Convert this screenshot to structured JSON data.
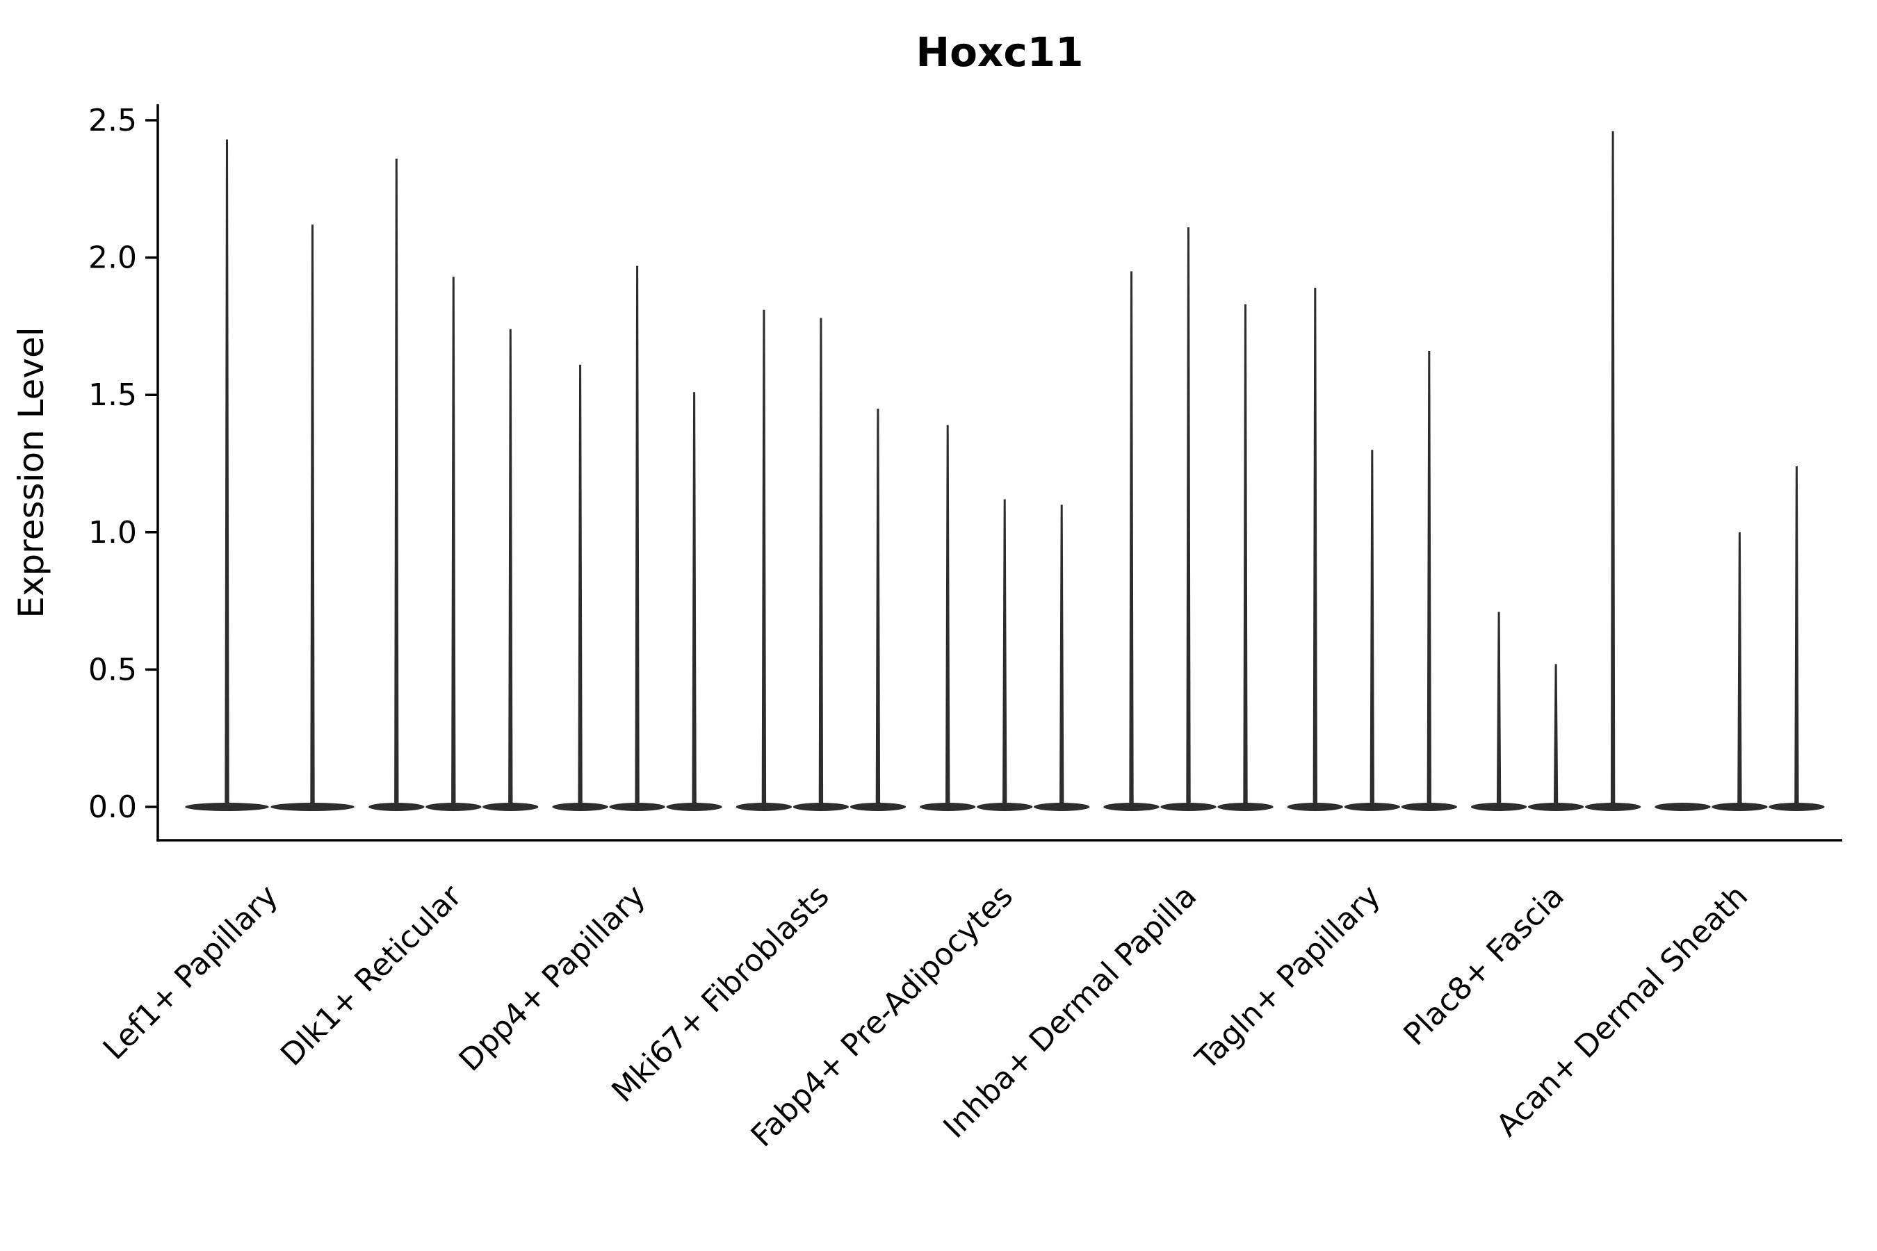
{
  "chart_data": {
    "type": "violin",
    "title": "Hoxc11",
    "ylabel": "Expression Level",
    "xlabel": "",
    "grid": false,
    "legend_position": "none",
    "ylim": [
      -0.12,
      2.56
    ],
    "ytick_labels": [
      "0.0",
      "0.5",
      "1.0",
      "1.5",
      "2.0",
      "2.5"
    ],
    "ytick_values": [
      0.0,
      0.5,
      1.0,
      1.5,
      2.0,
      2.5
    ],
    "categories": [
      "Lef1+ Papillary",
      "Dlk1+ Reticular",
      "Dpp4+ Papillary",
      "Mki67+ Fibroblasts",
      "Fabp4+ Pre-Adipocytes",
      "Inhba+ Dermal Papilla",
      "Tagln+ Papillary",
      "Plac8+ Fascia",
      "Acan+ Dermal Sheath"
    ],
    "description": "Needle violin plot: each violin's distribution bulk sits at 0 expression with a thin spike reaching the maximum expression value. Groups contain 2-3 violins; a value of 0 means a completely flat violin with no spike.",
    "groups": [
      {
        "category": "Lef1+ Papillary",
        "violin_max_values": [
          2.43,
          2.12
        ]
      },
      {
        "category": "Dlk1+ Reticular",
        "violin_max_values": [
          2.36,
          1.93,
          1.74
        ]
      },
      {
        "category": "Dpp4+ Papillary",
        "violin_max_values": [
          1.61,
          1.97,
          1.51
        ]
      },
      {
        "category": "Mki67+ Fibroblasts",
        "violin_max_values": [
          1.81,
          1.78,
          1.45
        ]
      },
      {
        "category": "Fabp4+ Pre-Adipocytes",
        "violin_max_values": [
          1.39,
          1.12,
          1.1
        ]
      },
      {
        "category": "Inhba+ Dermal Papilla",
        "violin_max_values": [
          1.95,
          2.11,
          1.83
        ]
      },
      {
        "category": "Tagln+ Papillary",
        "violin_max_values": [
          1.89,
          1.3,
          1.66
        ]
      },
      {
        "category": "Plac8+ Fascia",
        "violin_max_values": [
          0.71,
          0.52,
          2.46
        ]
      },
      {
        "category": "Acan+ Dermal Sheath",
        "violin_max_values": [
          0.0,
          1.0,
          1.24
        ]
      }
    ],
    "colors": {
      "violin": "#2d2d2d",
      "axis": "#000000",
      "text": "#000000",
      "background": "#ffffff"
    }
  }
}
